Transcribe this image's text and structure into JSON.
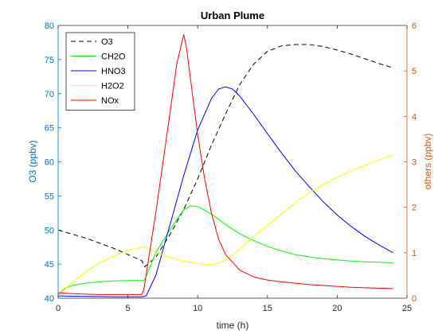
{
  "chart_data": {
    "type": "line",
    "title": "Urban Plume",
    "xlabel": "time (h)",
    "ylabel_left": "O3 (ppbv)",
    "ylabel_right": "others (ppbv)",
    "xlim": [
      0,
      25
    ],
    "ylim_left": [
      40,
      80
    ],
    "ylim_right": [
      0,
      6
    ],
    "xticks": [
      0,
      5,
      10,
      15,
      20,
      25
    ],
    "yticks_left": [
      40,
      45,
      50,
      55,
      60,
      65,
      70,
      75,
      80
    ],
    "yticks_right": [
      0,
      1,
      2,
      3,
      4,
      5,
      6
    ],
    "legend_position": "top-left",
    "grid": false,
    "colors": {
      "left_axis": "#0072BD",
      "right_axis": "#D95319",
      "axis_black": "#262626"
    },
    "series": [
      {
        "name": "O3",
        "axis": "left",
        "color": "#000000",
        "dash": true,
        "x": [
          0,
          2,
          4,
          6,
          6.2,
          7,
          8,
          9,
          10,
          11,
          12,
          13,
          14,
          15,
          16,
          17,
          18,
          19,
          20,
          21,
          22,
          23,
          24
        ],
        "y": [
          50,
          48.8,
          47.3,
          45.5,
          44.6,
          46,
          49.3,
          53,
          57.5,
          62.5,
          67,
          71.3,
          74.3,
          76.2,
          77,
          77.2,
          77.2,
          76.9,
          76.4,
          75.8,
          75.1,
          74.4,
          73.8
        ]
      },
      {
        "name": "CH2O",
        "axis": "right",
        "color": "#00FF00",
        "dash": false,
        "x": [
          0,
          0.5,
          1,
          2,
          3,
          4,
          5,
          6,
          6.2,
          7,
          8,
          9,
          9.5,
          10,
          11,
          12,
          13,
          14,
          15,
          16,
          17,
          18,
          19,
          20,
          21,
          22,
          23,
          24
        ],
        "y": [
          0.07,
          0.22,
          0.28,
          0.33,
          0.36,
          0.38,
          0.39,
          0.39,
          0.4,
          1.0,
          1.5,
          1.95,
          2.03,
          2.02,
          1.85,
          1.62,
          1.42,
          1.27,
          1.14,
          1.04,
          0.96,
          0.91,
          0.87,
          0.84,
          0.82,
          0.8,
          0.79,
          0.78
        ]
      },
      {
        "name": "HNO3",
        "axis": "right",
        "color": "#0000FF",
        "dash": false,
        "x": [
          0,
          2,
          4,
          6,
          6.3,
          7,
          8,
          9,
          10,
          11,
          11.5,
          12,
          12.5,
          13,
          14,
          15,
          16,
          17,
          18,
          19,
          20,
          21,
          22,
          23,
          24
        ],
        "y": [
          0.05,
          0.04,
          0.03,
          0.03,
          0.05,
          0.5,
          1.6,
          2.7,
          3.7,
          4.4,
          4.6,
          4.65,
          4.6,
          4.45,
          4.05,
          3.62,
          3.2,
          2.8,
          2.45,
          2.12,
          1.83,
          1.58,
          1.36,
          1.17,
          1.0
        ]
      },
      {
        "name": "H2O2",
        "axis": "right",
        "color": "#FFFF00",
        "dash": false,
        "x": [
          0,
          1,
          2,
          3,
          4,
          5,
          6,
          6.5,
          7,
          8,
          9,
          10,
          11,
          12,
          13,
          14,
          15,
          16,
          17,
          18,
          19,
          20,
          21,
          22,
          23,
          24
        ],
        "y": [
          0.05,
          0.35,
          0.58,
          0.78,
          0.93,
          1.05,
          1.12,
          1.1,
          1.0,
          0.9,
          0.82,
          0.76,
          0.74,
          0.83,
          1.08,
          1.35,
          1.6,
          1.85,
          2.1,
          2.32,
          2.5,
          2.66,
          2.8,
          2.92,
          3.04,
          3.15
        ]
      },
      {
        "name": "NOx",
        "axis": "right",
        "color": "#FF0000",
        "dash": false,
        "x": [
          0,
          1,
          2,
          3,
          4,
          5,
          6,
          6.15,
          7,
          8,
          8.5,
          9,
          9.2,
          10,
          10.5,
          11,
          11.5,
          12,
          13,
          14,
          15,
          16,
          17,
          18,
          19,
          20,
          21,
          22,
          23,
          24
        ],
        "y": [
          0.12,
          0.1,
          0.09,
          0.08,
          0.08,
          0.08,
          0.08,
          0.2,
          1.88,
          4.05,
          5.15,
          5.8,
          5.5,
          3.6,
          2.62,
          1.86,
          1.3,
          0.96,
          0.62,
          0.47,
          0.4,
          0.36,
          0.33,
          0.3,
          0.28,
          0.26,
          0.24,
          0.23,
          0.22,
          0.21
        ]
      }
    ]
  }
}
